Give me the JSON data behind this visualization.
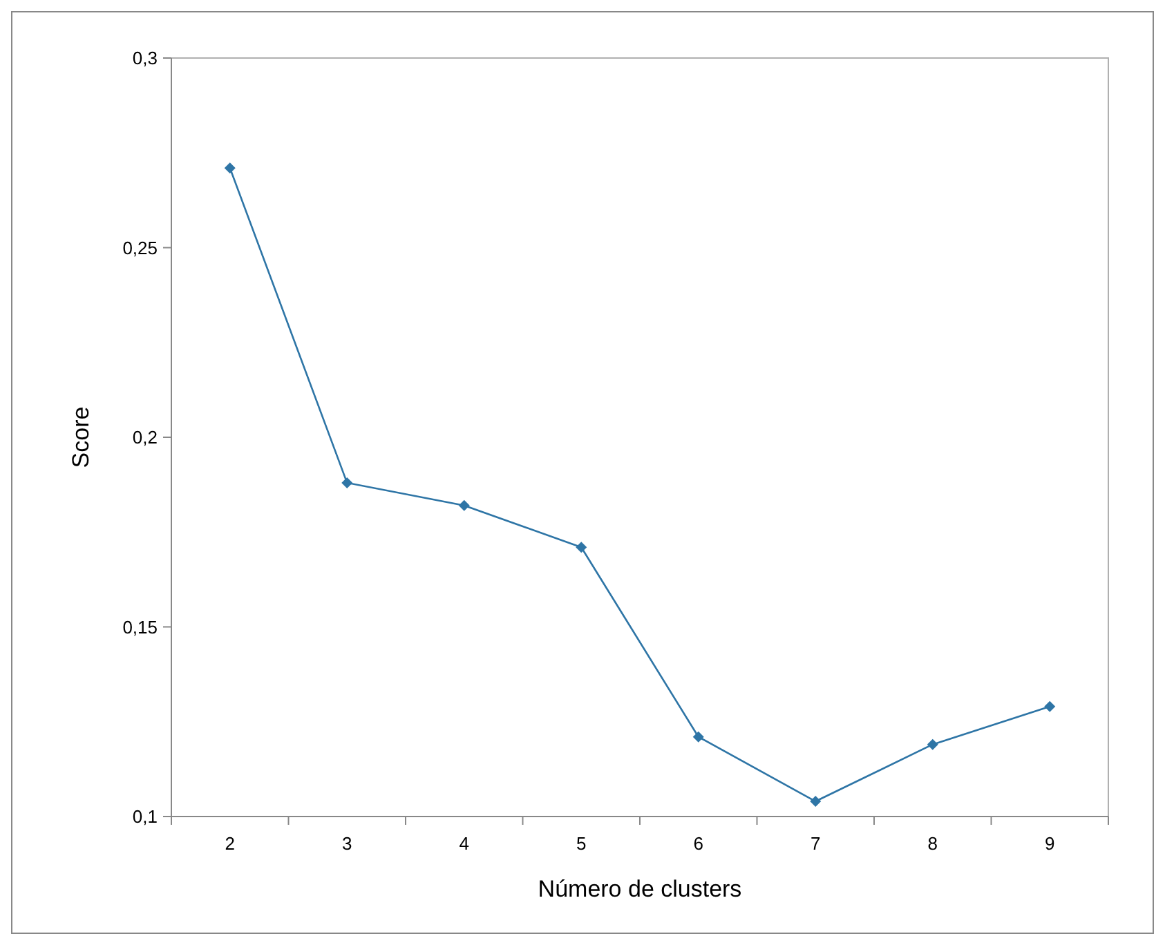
{
  "chart_data": {
    "type": "line",
    "xlabel": "Número de clusters",
    "ylabel": "Score",
    "categories": [
      "2",
      "3",
      "4",
      "5",
      "6",
      "7",
      "8",
      "9"
    ],
    "series": [
      {
        "color": "#2e75a6",
        "values": [
          0.271,
          0.188,
          0.182,
          0.171,
          0.121,
          0.104,
          0.119,
          0.129
        ]
      }
    ],
    "ylim": [
      0.1,
      0.3
    ],
    "yticks": [
      {
        "value": 0.1,
        "label": "0,1"
      },
      {
        "value": 0.15,
        "label": "0,15"
      },
      {
        "value": 0.2,
        "label": "0,2"
      },
      {
        "value": 0.25,
        "label": "0,25"
      },
      {
        "value": 0.3,
        "label": "0,3"
      }
    ],
    "grid": false,
    "marker": "diamond",
    "line_style": "solid"
  }
}
